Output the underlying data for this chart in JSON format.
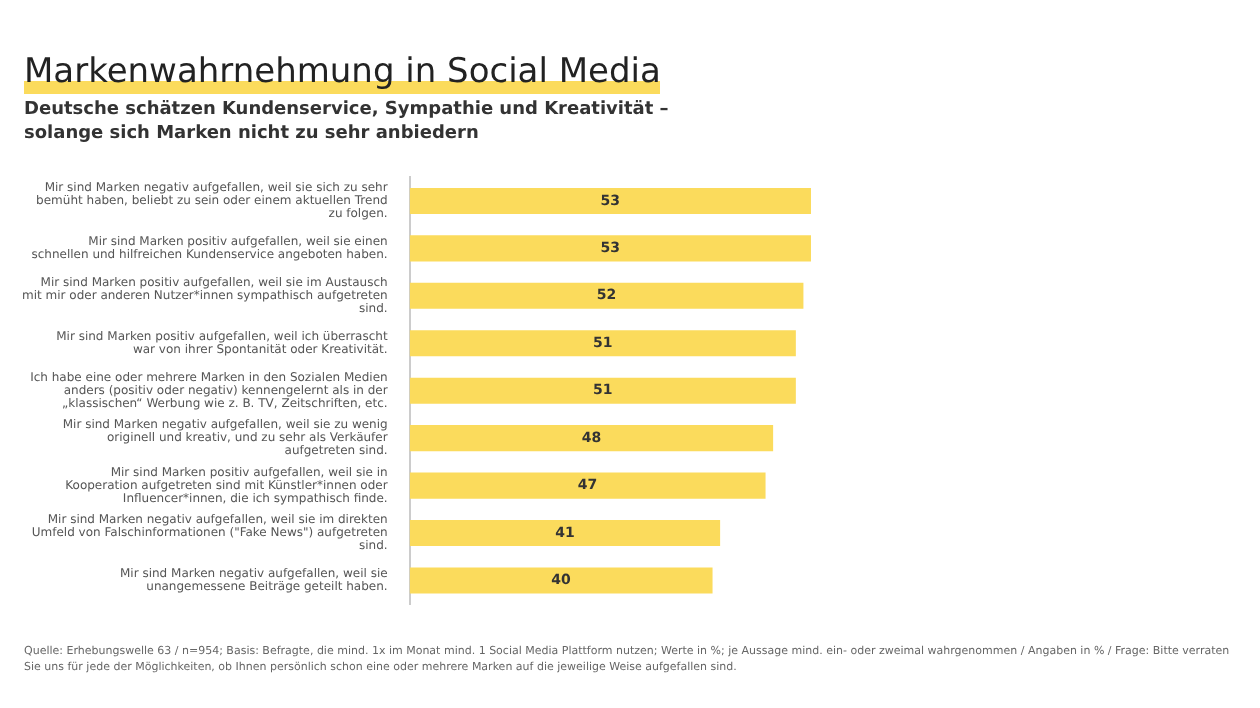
{
  "chart_data": {
    "type": "bar",
    "orientation": "horizontal",
    "title": "Markenwahrnehmung in Social Media",
    "subtitle": "Deutsche schätzen Kundenservice, Sympathie und Kreativität – solange sich Marken nicht zu sehr anbiedern",
    "categories": [
      "Mir sind Marken negativ aufgefallen, weil sie sich zu sehr bemüht haben, beliebt zu sein oder einem aktuellen Trend zu folgen.",
      "Mir sind Marken positiv aufgefallen, weil sie einen schnellen und hilfreichen Kundenservice angeboten haben.",
      "Mir sind Marken positiv aufgefallen, weil sie im Austausch mit mir oder anderen Nutzer*innen sympathisch aufgetreten sind.",
      "Mir sind Marken positiv aufgefallen, weil ich überrascht war von ihrer Spontanität oder Kreativität.",
      "Ich habe eine oder mehrere Marken in den Sozialen Medien anders (positiv oder negativ) kennengelernt als in der „klassischen“ Werbung wie z. B. TV, Zeitschriften, etc.",
      "Mir sind Marken negativ aufgefallen, weil sie zu wenig originell und kreativ, und zu sehr als Verkäufer aufgetreten sind.",
      "Mir sind Marken positiv aufgefallen, weil sie in Kooperation aufgetreten sind mit Künstler*innen oder Influencer*innen, die ich sympathisch finde.",
      "Mir sind Marken negativ aufgefallen, weil sie im direkten Umfeld von Falschinformationen (\"Fake News\") aufgetreten sind.",
      "Mir sind Marken negativ aufgefallen, weil sie unangemessene Beiträge geteilt haben."
    ],
    "values": [
      53,
      53,
      52,
      51,
      51,
      48,
      47,
      41,
      40
    ],
    "color": "#fbdb5c",
    "data_labels": true,
    "annotations": [
      "Quelle: Erhebungswelle 63 / n=954; Basis: Befragte, die mind. 1x im Monat mind. 1 Social Media Plattform nutzen; Werte in %; je Aussage mind. ein- oder zweimal wahrgenommen / Angaben in % / Frage: Bitte verraten Sie uns für jede der Möglichkeiten, ob Ihnen persönlich schon eine oder mehrere Marken auf die jeweilige Weise aufgefallen sind."
    ]
  }
}
